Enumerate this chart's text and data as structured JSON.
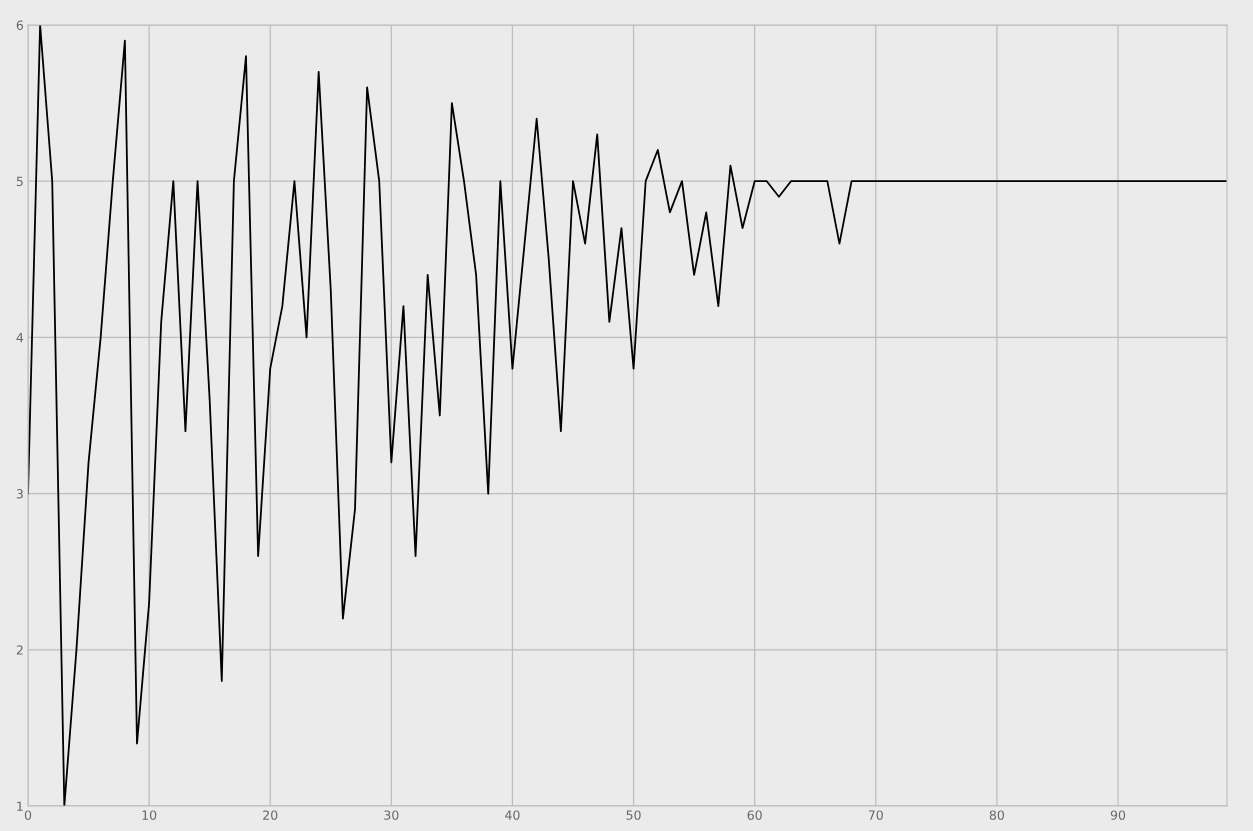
{
  "chart_data": {
    "type": "line",
    "x": [
      0,
      1,
      2,
      3,
      4,
      5,
      6,
      7,
      8,
      9,
      10,
      11,
      12,
      13,
      14,
      15,
      16,
      17,
      18,
      19,
      20,
      21,
      22,
      23,
      24,
      25,
      26,
      27,
      28,
      29,
      30,
      31,
      32,
      33,
      34,
      35,
      36,
      37,
      38,
      39,
      40,
      41,
      42,
      43,
      44,
      45,
      46,
      47,
      48,
      49,
      50,
      51,
      52,
      53,
      54,
      55,
      56,
      57,
      58,
      59,
      60,
      61,
      62,
      63,
      64,
      65,
      66,
      67,
      68,
      69,
      70,
      71,
      72,
      73,
      74,
      75,
      76,
      77,
      78,
      79,
      80,
      81,
      82,
      83,
      84,
      85,
      86,
      87,
      88,
      89,
      90,
      91,
      92,
      93,
      94,
      95,
      96,
      97,
      98,
      99
    ],
    "series": [
      {
        "color": "#000000",
        "values": [
          3,
          6,
          5,
          1,
          2.0,
          3.2,
          4.0,
          5.0,
          5.9,
          1.4,
          2.3,
          4.1,
          5,
          3.4,
          5,
          3.6,
          1.8,
          5,
          5.8,
          2.6,
          3.8,
          4.2,
          5,
          4,
          5.7,
          4.3,
          2.2,
          2.9,
          5.6,
          5,
          3.2,
          4.2,
          2.6,
          4.4,
          3.5,
          5.5,
          5,
          4.4,
          3,
          5,
          3.8,
          4.6,
          5.4,
          4.5,
          3.4,
          5,
          4.6,
          5.3,
          4.1,
          4.7,
          3.8,
          5,
          5.2,
          4.8,
          5,
          4.4,
          4.8,
          4.2,
          5.1,
          4.7,
          5,
          5,
          4.9,
          5,
          5,
          5,
          5,
          4.6,
          5,
          5,
          5,
          5,
          5,
          5,
          5,
          5,
          5,
          5,
          5,
          5,
          5,
          5,
          5,
          5,
          5,
          5,
          5,
          5,
          5,
          5,
          5,
          5,
          5,
          5,
          5,
          5,
          5,
          5,
          5,
          5
        ]
      }
    ],
    "xlim": [
      0,
      99
    ],
    "xticks": [
      0,
      10,
      20,
      30,
      40,
      50,
      60,
      70,
      80,
      90
    ],
    "ylim": [
      1,
      6
    ],
    "yticks": [
      1,
      2,
      3,
      4,
      5,
      6
    ],
    "grid": true,
    "legend": false,
    "marker": "none",
    "line_style": "solid"
  }
}
